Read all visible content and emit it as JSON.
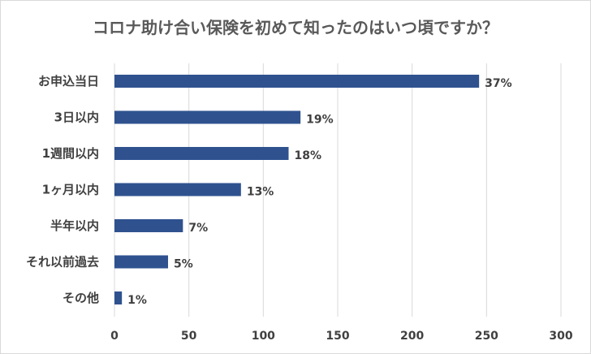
{
  "chart_data": {
    "type": "bar",
    "orientation": "horizontal",
    "title": "コロナ助け合い保険を初めて知ったのはいつ頃ですか？",
    "categories": [
      "お申込当日",
      "3日以内",
      "1週間以内",
      "1ヶ月以内",
      "半年以内",
      "それ以前過去",
      "その他"
    ],
    "values": [
      245,
      125,
      117,
      85,
      46,
      36,
      5
    ],
    "data_labels": [
      "37%",
      "19%",
      "18%",
      "13%",
      "7%",
      "5%",
      "1%"
    ],
    "xlim": [
      0,
      300
    ],
    "xticks": [
      "0",
      "50",
      "100",
      "150",
      "200",
      "250",
      "300"
    ],
    "grid": true,
    "legend": "none",
    "bar_color": "#2f528f"
  }
}
